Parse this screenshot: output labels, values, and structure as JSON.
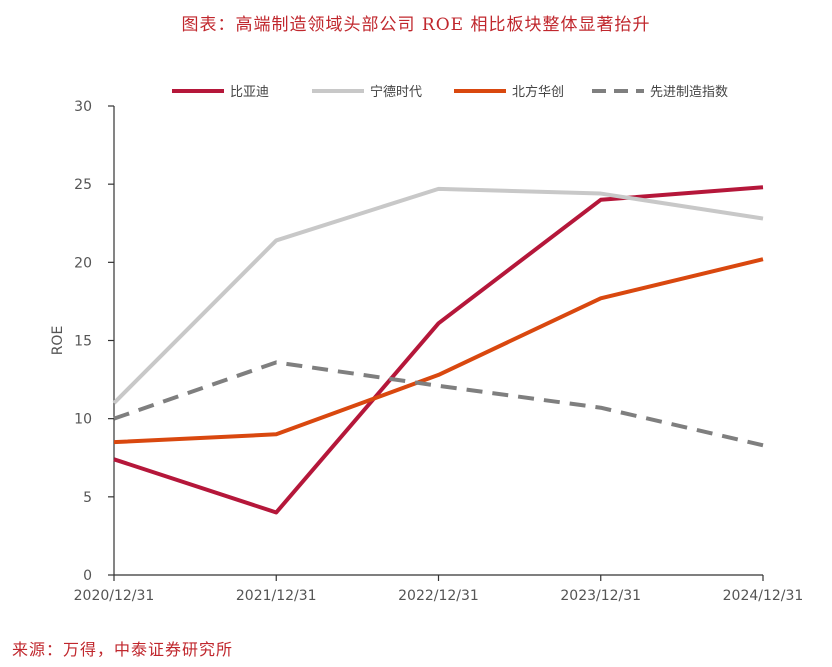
{
  "title": "图表：高端制造领域头部公司 ROE 相比板块整体显著抬升",
  "source": "来源：万得，中泰证券研究所",
  "chart_data": {
    "type": "line",
    "categories": [
      "2020/12/31",
      "2021/12/31",
      "2022/12/31",
      "2023/12/31",
      "2024/12/31"
    ],
    "ylabel": "ROE",
    "xlabel": "",
    "ylim": [
      0,
      30
    ],
    "yticks": [
      0,
      5,
      10,
      15,
      20,
      25,
      30
    ],
    "grid": false,
    "legend_position": "top",
    "series": [
      {
        "name": "比亚迪",
        "values": [
          7.4,
          4.0,
          16.1,
          24.0,
          24.8
        ],
        "color": "#b5173a",
        "dash": false
      },
      {
        "name": "宁德时代",
        "values": [
          11.0,
          21.4,
          24.7,
          24.4,
          22.8
        ],
        "color": "#c8c8c8",
        "dash": false
      },
      {
        "name": "北方华创",
        "values": [
          8.5,
          9.0,
          12.8,
          17.7,
          20.2
        ],
        "color": "#d9480f",
        "dash": false
      },
      {
        "name": "先进制造指数",
        "values": [
          10.0,
          13.6,
          12.1,
          10.7,
          8.3
        ],
        "color": "#7f7f7f",
        "dash": true
      }
    ]
  }
}
